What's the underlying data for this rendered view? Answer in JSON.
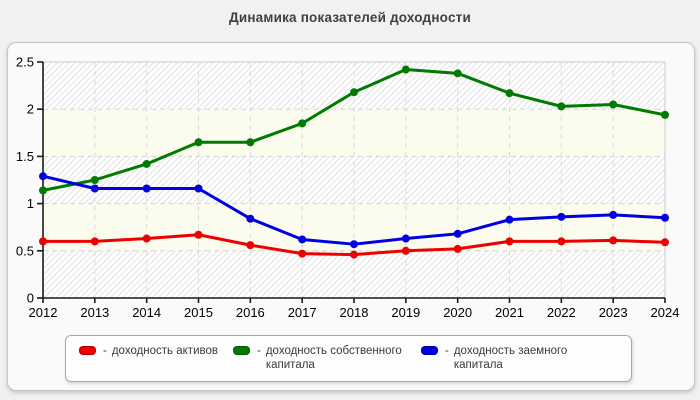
{
  "page": {
    "title": "Динамика показателей доходности"
  },
  "chart_data": {
    "type": "line",
    "title": "Динамика показателей доходности",
    "x": [
      2012,
      2013,
      2014,
      2015,
      2016,
      2017,
      2018,
      2019,
      2020,
      2021,
      2022,
      2023,
      2024
    ],
    "series": [
      {
        "name": "доходность активов",
        "color": "#ee0000",
        "values": [
          0.6,
          0.6,
          0.63,
          0.67,
          0.56,
          0.47,
          0.46,
          0.5,
          0.52,
          0.6,
          0.6,
          0.61,
          0.59
        ]
      },
      {
        "name": "доходность собственного капитала",
        "color": "#007a00",
        "values": [
          1.14,
          1.25,
          1.42,
          1.65,
          1.65,
          1.85,
          2.18,
          2.42,
          2.38,
          2.17,
          2.03,
          2.05,
          1.94
        ]
      },
      {
        "name": "доходность заемного капитала",
        "color": "#0000e0",
        "values": [
          1.29,
          1.16,
          1.16,
          1.16,
          0.84,
          0.62,
          0.57,
          0.63,
          0.68,
          0.83,
          0.86,
          0.88,
          0.85
        ]
      }
    ],
    "xlabel": "",
    "ylabel": "",
    "ylim": [
      0,
      2.5
    ],
    "ytick_step": 0.5,
    "grid": "dashed",
    "legend_position": "bottom",
    "plot_background": "alternating bands: hatched and plain cream",
    "band_plain_color": "#fbfbee",
    "hatch_line_color": "#e3e3e3",
    "axis_color": "#1a1a1a",
    "gridline_color": "#d4d4d4"
  },
  "legend": {
    "bullet": "-",
    "items": [
      {
        "label": "доходность активов",
        "color": "#ee0000"
      },
      {
        "label": "доходность собственного капитала",
        "color": "#007a00"
      },
      {
        "label": "доходность заемного капитала",
        "color": "#0000e0"
      }
    ]
  }
}
